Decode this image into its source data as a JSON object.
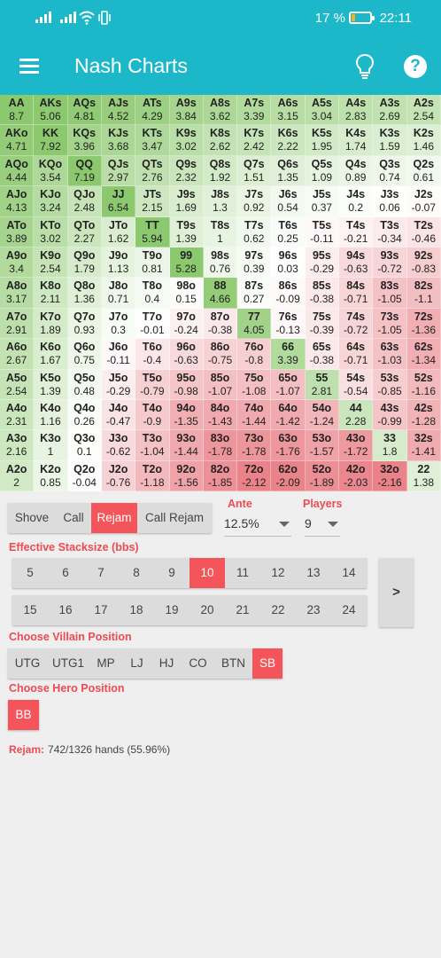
{
  "status_bar": {
    "battery_text": "17 %",
    "battery_level": 0.17,
    "battery_color": "#f6b21c",
    "time": "22:11"
  },
  "app_bar": {
    "title": "Nash Charts",
    "menu_icon": "hamburger-icon",
    "hint_icon": "lightbulb-icon",
    "help_icon": "help-icon",
    "help_glyph": "?",
    "color": "#1cb8c9"
  },
  "grid": {
    "rows": [
      [
        [
          "AA",
          "8.7"
        ],
        [
          "AKs",
          "5.06"
        ],
        [
          "AQs",
          "4.81"
        ],
        [
          "AJs",
          "4.52"
        ],
        [
          "ATs",
          "4.29"
        ],
        [
          "A9s",
          "3.84"
        ],
        [
          "A8s",
          "3.62"
        ],
        [
          "A7s",
          "3.39"
        ],
        [
          "A6s",
          "3.15"
        ],
        [
          "A5s",
          "3.04"
        ],
        [
          "A4s",
          "2.83"
        ],
        [
          "A3s",
          "2.69"
        ],
        [
          "A2s",
          "2.54"
        ]
      ],
      [
        [
          "AKo",
          "4.71"
        ],
        [
          "KK",
          "7.92"
        ],
        [
          "KQs",
          "3.96"
        ],
        [
          "KJs",
          "3.68"
        ],
        [
          "KTs",
          "3.47"
        ],
        [
          "K9s",
          "3.02"
        ],
        [
          "K8s",
          "2.62"
        ],
        [
          "K7s",
          "2.42"
        ],
        [
          "K6s",
          "2.22"
        ],
        [
          "K5s",
          "1.95"
        ],
        [
          "K4s",
          "1.74"
        ],
        [
          "K3s",
          "1.59"
        ],
        [
          "K2s",
          "1.46"
        ]
      ],
      [
        [
          "AQo",
          "4.44"
        ],
        [
          "KQo",
          "3.54"
        ],
        [
          "QQ",
          "7.19"
        ],
        [
          "QJs",
          "2.97"
        ],
        [
          "QTs",
          "2.76"
        ],
        [
          "Q9s",
          "2.32"
        ],
        [
          "Q8s",
          "1.92"
        ],
        [
          "Q7s",
          "1.51"
        ],
        [
          "Q6s",
          "1.35"
        ],
        [
          "Q5s",
          "1.09"
        ],
        [
          "Q4s",
          "0.89"
        ],
        [
          "Q3s",
          "0.74"
        ],
        [
          "Q2s",
          "0.61"
        ]
      ],
      [
        [
          "AJo",
          "4.13"
        ],
        [
          "KJo",
          "3.24"
        ],
        [
          "QJo",
          "2.48"
        ],
        [
          "JJ",
          "6.54"
        ],
        [
          "JTs",
          "2.15"
        ],
        [
          "J9s",
          "1.69"
        ],
        [
          "J8s",
          "1.3"
        ],
        [
          "J7s",
          "0.92"
        ],
        [
          "J6s",
          "0.54"
        ],
        [
          "J5s",
          "0.37"
        ],
        [
          "J4s",
          "0.2"
        ],
        [
          "J3s",
          "0.06"
        ],
        [
          "J2s",
          "-0.07"
        ]
      ],
      [
        [
          "ATo",
          "3.89"
        ],
        [
          "KTo",
          "3.02"
        ],
        [
          "QTo",
          "2.27"
        ],
        [
          "JTo",
          "1.62"
        ],
        [
          "TT",
          "5.94"
        ],
        [
          "T9s",
          "1.39"
        ],
        [
          "T8s",
          "1"
        ],
        [
          "T7s",
          "0.62"
        ],
        [
          "T6s",
          "0.25"
        ],
        [
          "T5s",
          "-0.11"
        ],
        [
          "T4s",
          "-0.21"
        ],
        [
          "T3s",
          "-0.34"
        ],
        [
          "T2s",
          "-0.46"
        ]
      ],
      [
        [
          "A9o",
          "3.4"
        ],
        [
          "K9o",
          "2.54"
        ],
        [
          "Q9o",
          "1.79"
        ],
        [
          "J9o",
          "1.13"
        ],
        [
          "T9o",
          "0.81"
        ],
        [
          "99",
          "5.28"
        ],
        [
          "98s",
          "0.76"
        ],
        [
          "97s",
          "0.39"
        ],
        [
          "96s",
          "0.03"
        ],
        [
          "95s",
          "-0.29"
        ],
        [
          "94s",
          "-0.63"
        ],
        [
          "93s",
          "-0.72"
        ],
        [
          "92s",
          "-0.83"
        ]
      ],
      [
        [
          "A8o",
          "3.17"
        ],
        [
          "K8o",
          "2.11"
        ],
        [
          "Q8o",
          "1.36"
        ],
        [
          "J8o",
          "0.71"
        ],
        [
          "T8o",
          "0.4"
        ],
        [
          "98o",
          "0.15"
        ],
        [
          "88",
          "4.66"
        ],
        [
          "87s",
          "0.27"
        ],
        [
          "86s",
          "-0.09"
        ],
        [
          "85s",
          "-0.38"
        ],
        [
          "84s",
          "-0.71"
        ],
        [
          "83s",
          "-1.05"
        ],
        [
          "82s",
          "-1.1"
        ]
      ],
      [
        [
          "A7o",
          "2.91"
        ],
        [
          "K7o",
          "1.89"
        ],
        [
          "Q7o",
          "0.93"
        ],
        [
          "J7o",
          "0.3"
        ],
        [
          "T7o",
          "-0.01"
        ],
        [
          "97o",
          "-0.24"
        ],
        [
          "87o",
          "-0.38"
        ],
        [
          "77",
          "4.05"
        ],
        [
          "76s",
          "-0.13"
        ],
        [
          "75s",
          "-0.39"
        ],
        [
          "74s",
          "-0.72"
        ],
        [
          "73s",
          "-1.05"
        ],
        [
          "72s",
          "-1.36"
        ]
      ],
      [
        [
          "A6o",
          "2.67"
        ],
        [
          "K6o",
          "1.67"
        ],
        [
          "Q6o",
          "0.75"
        ],
        [
          "J6o",
          "-0.11"
        ],
        [
          "T6o",
          "-0.4"
        ],
        [
          "96o",
          "-0.63"
        ],
        [
          "86o",
          "-0.75"
        ],
        [
          "76o",
          "-0.8"
        ],
        [
          "66",
          "3.39"
        ],
        [
          "65s",
          "-0.38"
        ],
        [
          "64s",
          "-0.71"
        ],
        [
          "63s",
          "-1.03"
        ],
        [
          "62s",
          "-1.34"
        ]
      ],
      [
        [
          "A5o",
          "2.54"
        ],
        [
          "K5o",
          "1.39"
        ],
        [
          "Q5o",
          "0.48"
        ],
        [
          "J5o",
          "-0.29"
        ],
        [
          "T5o",
          "-0.79"
        ],
        [
          "95o",
          "-0.98"
        ],
        [
          "85o",
          "-1.07"
        ],
        [
          "75o",
          "-1.08"
        ],
        [
          "65o",
          "-1.07"
        ],
        [
          "55",
          "2.81"
        ],
        [
          "54s",
          "-0.54"
        ],
        [
          "53s",
          "-0.85"
        ],
        [
          "52s",
          "-1.16"
        ]
      ],
      [
        [
          "A4o",
          "2.31"
        ],
        [
          "K4o",
          "1.16"
        ],
        [
          "Q4o",
          "0.26"
        ],
        [
          "J4o",
          "-0.47"
        ],
        [
          "T4o",
          "-0.9"
        ],
        [
          "94o",
          "-1.35"
        ],
        [
          "84o",
          "-1.43"
        ],
        [
          "74o",
          "-1.44"
        ],
        [
          "64o",
          "-1.42"
        ],
        [
          "54o",
          "-1.24"
        ],
        [
          "44",
          "2.28"
        ],
        [
          "43s",
          "-0.99"
        ],
        [
          "42s",
          "-1.28"
        ]
      ],
      [
        [
          "A3o",
          "2.16"
        ],
        [
          "K3o",
          "1"
        ],
        [
          "Q3o",
          "0.1"
        ],
        [
          "J3o",
          "-0.62"
        ],
        [
          "T3o",
          "-1.04"
        ],
        [
          "93o",
          "-1.44"
        ],
        [
          "83o",
          "-1.78"
        ],
        [
          "73o",
          "-1.78"
        ],
        [
          "63o",
          "-1.76"
        ],
        [
          "53o",
          "-1.57"
        ],
        [
          "43o",
          "-1.72"
        ],
        [
          "33",
          "1.8"
        ],
        [
          "32s",
          "-1.41"
        ]
      ],
      [
        [
          "A2o",
          "2"
        ],
        [
          "K2o",
          "0.85"
        ],
        [
          "Q2o",
          "-0.04"
        ],
        [
          "J2o",
          "-0.76"
        ],
        [
          "T2o",
          "-1.18"
        ],
        [
          "92o",
          "-1.56"
        ],
        [
          "82o",
          "-1.85"
        ],
        [
          "72o",
          "-2.12"
        ],
        [
          "62o",
          "-2.09"
        ],
        [
          "52o",
          "-1.89"
        ],
        [
          "42o",
          "-2.03"
        ],
        [
          "32o",
          "-2.16"
        ],
        [
          "22",
          "1.38"
        ]
      ]
    ]
  },
  "action_tabs": {
    "options": [
      "Shove",
      "Call",
      "Rejam",
      "Call Rejam"
    ],
    "selected": 2
  },
  "ante": {
    "label": "Ante",
    "value": "12.5%"
  },
  "players": {
    "label": "Players",
    "value": "9"
  },
  "stacksize": {
    "label": "Effective Stacksize (bbs)",
    "row1": [
      "5",
      "6",
      "7",
      "8",
      "9",
      "10",
      "11",
      "12",
      "13",
      "14"
    ],
    "row2": [
      "15",
      "16",
      "17",
      "18",
      "19",
      "20",
      "21",
      "22",
      "23",
      "24"
    ],
    "selected": "10",
    "next_label": ">"
  },
  "villain": {
    "label": "Choose Villain Position",
    "options": [
      "UTG",
      "UTG1",
      "MP",
      "LJ",
      "HJ",
      "CO",
      "BTN",
      "SB"
    ],
    "selected": 7
  },
  "hero": {
    "label": "Choose Hero Position",
    "options": [
      "BB"
    ],
    "selected": 0
  },
  "result": {
    "label": "Rejam:",
    "text": "742/1326 hands (55.96%)"
  },
  "colors": {
    "accent": "#f4555a",
    "label": "#ef4a52",
    "strong_green": "#8cc86e",
    "strong_red": "#e98289"
  }
}
